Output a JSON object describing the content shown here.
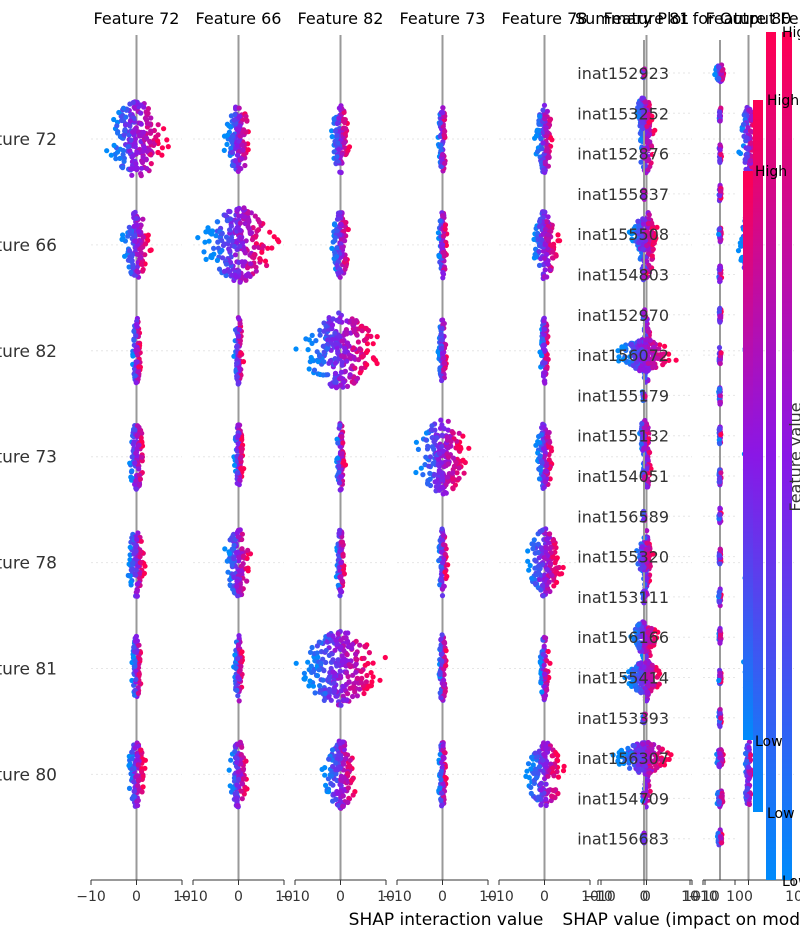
{
  "chart_data": [
    {
      "type": "scatter",
      "subtype": "shap-interaction-beeswarm-grid",
      "features": [
        "Feature 72",
        "Feature 66",
        "Feature 82",
        "Feature 73",
        "Feature 78",
        "Feature 81",
        "Feature 80"
      ],
      "row_labels": [
        "ture 72",
        "ture 66",
        "ture 82",
        "ture 73",
        "ture 78",
        "ture 81",
        "ture 80"
      ],
      "xlabel": "SHAP interaction value",
      "xlim": [
        -10,
        10
      ],
      "x_ticks": [
        -10,
        0,
        10
      ],
      "x_tick_labels": [
        "−10",
        "0",
        "10"
      ],
      "spread": [
        [
          7,
          3,
          2,
          1,
          2,
          2,
          2
        ],
        [
          3,
          8,
          2,
          1,
          3,
          2,
          2
        ],
        [
          1,
          1,
          8,
          1,
          1,
          1,
          1
        ],
        [
          2,
          1,
          1,
          6,
          2,
          1,
          1
        ],
        [
          2,
          3,
          1,
          1,
          4,
          1,
          1
        ],
        [
          1,
          1,
          9,
          1,
          1,
          1,
          1
        ],
        [
          2,
          2,
          4,
          1,
          4,
          1,
          1
        ]
      ]
    },
    {
      "type": "scatter",
      "subtype": "shap-summary-beeswarm",
      "title": "Summary Plot for Output Fe",
      "categories": [
        "inat152923",
        "inat153252",
        "inat152876",
        "inat155837",
        "inat155508",
        "inat154803",
        "inat152970",
        "inat156072",
        "inat155179",
        "inat155132",
        "inat154051",
        "inat156589",
        "inat155320",
        "inat153111",
        "inat156166",
        "inat155414",
        "inat153393",
        "inat156307",
        "inat154709",
        "inat156683"
      ],
      "spread_main": [
        0,
        2,
        0,
        0,
        3,
        0,
        0,
        6,
        0,
        1,
        0,
        0,
        2,
        0,
        3,
        4,
        0,
        6,
        0,
        0
      ],
      "spread_small": [
        4,
        1,
        1,
        1,
        1,
        1,
        1,
        1,
        1,
        1,
        1,
        1,
        1,
        1,
        1,
        1,
        1,
        3,
        3,
        2
      ],
      "xlabel": "SHAP value (impact on mod",
      "x_ticks_main": [
        -10,
        0,
        10
      ],
      "x_tick_labels_main": [
        "−10",
        "0",
        "10"
      ],
      "x_ticks_small": [
        -10,
        10
      ],
      "x_tick_labels_small": [
        "−10",
        "10"
      ]
    }
  ],
  "colorbar": {
    "title": "Feature value",
    "high_label": "High",
    "low_label": "Low",
    "colors": {
      "high": "#ff0052",
      "mid": "#8a17e6",
      "low": "#008bfb"
    }
  }
}
